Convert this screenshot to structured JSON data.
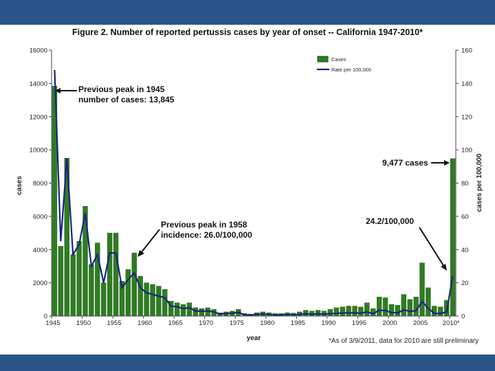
{
  "colors": {
    "band": "#2b5488",
    "bar": "#2e7d22",
    "bar_edge": "#1b4d12",
    "line": "#1a237e"
  },
  "chart_data": {
    "type": "bar",
    "title": "Figure 2. Number of reported pertussis cases by year of onset -- California 1947-2010*",
    "xlabel": "year",
    "ylabel": "cases",
    "y2label": "cases per 100,000",
    "ylim": [
      0,
      16000
    ],
    "y2lim": [
      0,
      160
    ],
    "yticks": [
      "0",
      "2000",
      "4000",
      "6000",
      "8000",
      "10000",
      "12000",
      "14000",
      "16000"
    ],
    "y2ticks": [
      "0",
      "20",
      "40",
      "60",
      "80",
      "100",
      "120",
      "140",
      "160"
    ],
    "xticks": [
      "1945",
      "1950",
      "1955",
      "1960",
      "1965",
      "1970",
      "1975",
      "1980",
      "1985",
      "1990",
      "1995",
      "2000",
      "2005",
      "2010*"
    ],
    "legend": [
      "Cases",
      "Rate per 100,000"
    ],
    "legend_position": "top-right",
    "categories": [
      1945,
      1946,
      1947,
      1948,
      1949,
      1950,
      1951,
      1952,
      1953,
      1954,
      1955,
      1956,
      1957,
      1958,
      1959,
      1960,
      1961,
      1962,
      1963,
      1964,
      1965,
      1966,
      1967,
      1968,
      1969,
      1970,
      1971,
      1972,
      1973,
      1974,
      1975,
      1976,
      1977,
      1978,
      1979,
      1980,
      1981,
      1982,
      1983,
      1984,
      1985,
      1986,
      1987,
      1988,
      1989,
      1990,
      1991,
      1992,
      1993,
      1994,
      1995,
      1996,
      1997,
      1998,
      1999,
      2000,
      2001,
      2002,
      2003,
      2004,
      2005,
      2006,
      2007,
      2008,
      2009,
      2010
    ],
    "series": [
      {
        "name": "Cases",
        "kind": "bar",
        "values": [
          13845,
          4200,
          9500,
          3700,
          4500,
          6600,
          3100,
          4400,
          2000,
          5000,
          5000,
          2100,
          2800,
          3800,
          2400,
          2000,
          1900,
          1800,
          1600,
          900,
          800,
          700,
          800,
          500,
          450,
          500,
          400,
          200,
          250,
          300,
          400,
          150,
          120,
          200,
          250,
          200,
          150,
          150,
          200,
          180,
          250,
          350,
          300,
          350,
          300,
          400,
          500,
          550,
          600,
          600,
          550,
          800,
          450,
          1150,
          1100,
          700,
          650,
          1300,
          1000,
          1150,
          3200,
          1700,
          600,
          550,
          950,
          9477
        ]
      },
      {
        "name": "Rate per 100,000",
        "kind": "line",
        "values": [
          148,
          45,
          95,
          37,
          43,
          62,
          30,
          37,
          20,
          38,
          38,
          17,
          22,
          26,
          17,
          14,
          13,
          12,
          11,
          6,
          5.5,
          4.5,
          5,
          3,
          3,
          3,
          2.5,
          1.2,
          1.5,
          1.7,
          2.2,
          0.8,
          0.6,
          1,
          1.2,
          0.9,
          0.7,
          0.7,
          0.9,
          0.8,
          1,
          1.3,
          1.1,
          1.3,
          1.1,
          1.4,
          1.6,
          1.8,
          1.9,
          1.9,
          1.7,
          2.5,
          1.4,
          3.5,
          3.3,
          2.1,
          1.9,
          3.7,
          2.8,
          3.2,
          8.8,
          4.6,
          1.6,
          1.5,
          2.5,
          24.2
        ]
      }
    ],
    "annotations": [
      {
        "lines": [
          "Previous peak in 1945",
          "number of cases: 13,845"
        ]
      },
      {
        "lines": [
          "Previous peak in 1958",
          "incidence: 26.0/100,000"
        ]
      },
      {
        "lines": [
          "9,477 cases"
        ]
      },
      {
        "lines": [
          "24.2/100,000"
        ]
      }
    ],
    "footnote": "*As of 3/9/2011, data for 2010 are still preliminary"
  }
}
